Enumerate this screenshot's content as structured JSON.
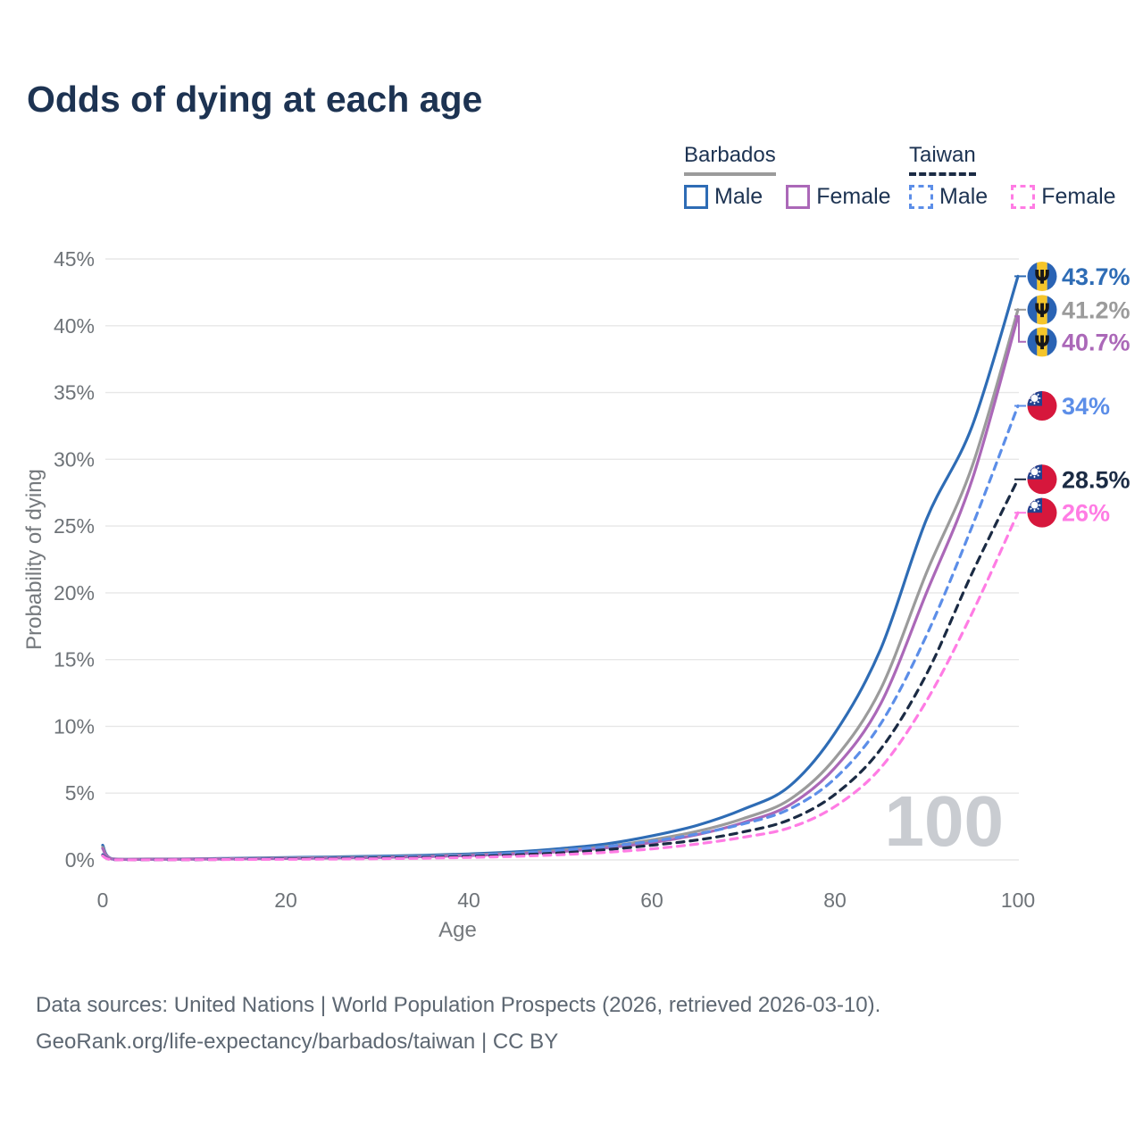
{
  "title": "Odds of dying at each age",
  "watermark": "100",
  "legend": {
    "groups": [
      {
        "label": "Barbados",
        "line_style": "solid",
        "underline_color": "#9b9b9b",
        "items": [
          {
            "label": "Male",
            "color": "#2e6cb5"
          },
          {
            "label": "Female",
            "color": "#ab68b8"
          }
        ]
      },
      {
        "label": "Taiwan",
        "line_style": "dashed",
        "underline_color": "#1b2b44",
        "items": [
          {
            "label": "Male",
            "color": "#5c8ee8"
          },
          {
            "label": "Female",
            "color": "#ff7ce4"
          }
        ]
      }
    ]
  },
  "footer": {
    "line1": "Data sources: United Nations | World Population Prospects (2026, retrieved 2026-03-10).",
    "line2": "GeoRank.org/life-expectancy/barbados/taiwan | CC BY"
  },
  "chart_data": {
    "type": "line",
    "title": "Odds of dying at each age",
    "xlabel": "Age",
    "ylabel": "Probability of dying",
    "xlim": [
      0,
      100
    ],
    "ylim": [
      0,
      45
    ],
    "x_ticks": [
      0,
      20,
      40,
      60,
      80,
      100
    ],
    "y_ticks": [
      0,
      5,
      10,
      15,
      20,
      25,
      30,
      35,
      40,
      45
    ],
    "y_tick_suffix": "%",
    "grid": "horizontal",
    "legend_position": "top-right",
    "x": [
      0,
      1,
      5,
      10,
      15,
      20,
      25,
      30,
      35,
      40,
      45,
      50,
      55,
      60,
      65,
      70,
      75,
      80,
      85,
      90,
      95,
      100
    ],
    "series": [
      {
        "name": "Barbados Male",
        "country": "Barbados",
        "sex": "Male",
        "color": "#2e6cb5",
        "line_style": "solid",
        "end_label": "43.7%",
        "values": [
          1.1,
          0.09,
          0.07,
          0.08,
          0.13,
          0.18,
          0.22,
          0.28,
          0.35,
          0.45,
          0.6,
          0.85,
          1.2,
          1.8,
          2.6,
          3.8,
          5.5,
          9.5,
          15.8,
          25.5,
          32.5,
          43.7
        ]
      },
      {
        "name": "Barbados Both sexes",
        "country": "Barbados",
        "sex": "Both",
        "color": "#9b9b9b",
        "line_style": "solid",
        "end_label": "41.2%",
        "values": [
          0.95,
          0.08,
          0.06,
          0.07,
          0.1,
          0.14,
          0.18,
          0.22,
          0.28,
          0.38,
          0.5,
          0.72,
          1.0,
          1.5,
          2.15,
          3.1,
          4.5,
          7.6,
          12.8,
          21.5,
          29.5,
          41.2
        ]
      },
      {
        "name": "Barbados Female",
        "country": "Barbados",
        "sex": "Female",
        "color": "#ab68b8",
        "line_style": "solid",
        "end_label": "40.7%",
        "values": [
          0.85,
          0.07,
          0.05,
          0.06,
          0.08,
          0.11,
          0.14,
          0.18,
          0.24,
          0.33,
          0.45,
          0.62,
          0.9,
          1.3,
          1.9,
          2.8,
          4.1,
          6.9,
          11.7,
          20.0,
          28.5,
          40.7
        ]
      },
      {
        "name": "Taiwan Male",
        "country": "Taiwan",
        "sex": "Male",
        "color": "#5c8ee8",
        "line_style": "dashed",
        "end_label": "34%",
        "values": [
          0.4,
          0.03,
          0.02,
          0.03,
          0.07,
          0.11,
          0.15,
          0.2,
          0.26,
          0.35,
          0.5,
          0.72,
          1.0,
          1.4,
          1.95,
          2.7,
          3.8,
          6.1,
          10.2,
          16.8,
          25.0,
          34.0
        ]
      },
      {
        "name": "Taiwan Both sexes",
        "country": "Taiwan",
        "sex": "Both",
        "color": "#1b2b44",
        "line_style": "dashed",
        "end_label": "28.5%",
        "values": [
          0.35,
          0.03,
          0.02,
          0.025,
          0.05,
          0.08,
          0.11,
          0.14,
          0.19,
          0.26,
          0.37,
          0.53,
          0.77,
          1.1,
          1.5,
          2.1,
          3.0,
          4.9,
          8.3,
          13.9,
          21.5,
          28.5
        ]
      },
      {
        "name": "Taiwan Female",
        "country": "Taiwan",
        "sex": "Female",
        "color": "#ff7ce4",
        "line_style": "dashed",
        "end_label": "26%",
        "values": [
          0.3,
          0.02,
          0.015,
          0.02,
          0.035,
          0.05,
          0.07,
          0.09,
          0.13,
          0.19,
          0.27,
          0.39,
          0.57,
          0.83,
          1.2,
          1.7,
          2.4,
          4.0,
          6.9,
          11.9,
          18.5,
          26.0
        ]
      }
    ]
  }
}
